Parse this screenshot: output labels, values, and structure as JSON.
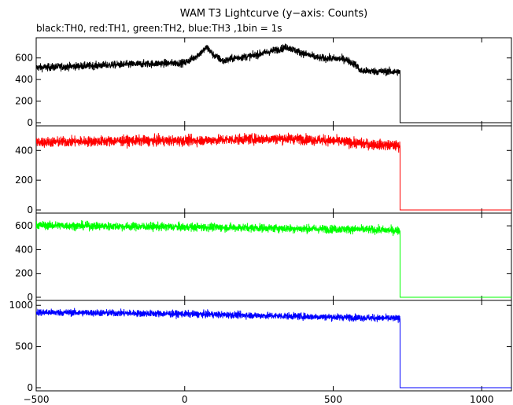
{
  "figure": {
    "title": "WAM T3 Lightcurve (y−axis: Counts)",
    "subtitle": "black:TH0, red:TH1, green:TH2, blue:TH3 ,1bin = 1s"
  },
  "chart_data": [
    {
      "type": "line",
      "channel": "TH0",
      "color": "#000000",
      "xlim": [
        -500,
        1100
      ],
      "ylim": [
        0,
        780
      ],
      "yticks": [
        0,
        200,
        400,
        600
      ],
      "cutoff_x": 725,
      "baseline_after_cutoff": 0,
      "noise": 25,
      "shape": [
        [
          -500,
          510
        ],
        [
          -200,
          540
        ],
        [
          0,
          555
        ],
        [
          30,
          600
        ],
        [
          60,
          660
        ],
        [
          75,
          700
        ],
        [
          95,
          630
        ],
        [
          130,
          570
        ],
        [
          170,
          600
        ],
        [
          230,
          620
        ],
        [
          300,
          670
        ],
        [
          345,
          700
        ],
        [
          390,
          650
        ],
        [
          450,
          600
        ],
        [
          540,
          590
        ],
        [
          580,
          530
        ],
        [
          590,
          480
        ],
        [
          725,
          470
        ]
      ]
    },
    {
      "type": "line",
      "channel": "TH1",
      "color": "#ff0000",
      "xlim": [
        -500,
        1100
      ],
      "ylim": [
        0,
        560
      ],
      "yticks": [
        0,
        200,
        400
      ],
      "cutoff_x": 725,
      "baseline_after_cutoff": 0,
      "noise": 25,
      "shape": [
        [
          -500,
          455
        ],
        [
          -200,
          465
        ],
        [
          0,
          465
        ],
        [
          200,
          475
        ],
        [
          350,
          480
        ],
        [
          500,
          465
        ],
        [
          600,
          445
        ],
        [
          725,
          430
        ]
      ]
    },
    {
      "type": "line",
      "channel": "TH2",
      "color": "#00ff00",
      "xlim": [
        -500,
        1100
      ],
      "ylim": [
        0,
        700
      ],
      "yticks": [
        0,
        200,
        400,
        600
      ],
      "cutoff_x": 725,
      "baseline_after_cutoff": 0,
      "noise": 25,
      "shape": [
        [
          -500,
          605
        ],
        [
          -200,
          595
        ],
        [
          0,
          590
        ],
        [
          200,
          585
        ],
        [
          400,
          575
        ],
        [
          600,
          570
        ],
        [
          725,
          560
        ]
      ]
    },
    {
      "type": "line",
      "channel": "TH3",
      "color": "#0000ff",
      "xlim": [
        -500,
        1100
      ],
      "ylim": [
        0,
        1050
      ],
      "yticks": [
        0,
        500,
        1000
      ],
      "cutoff_x": 725,
      "baseline_after_cutoff": 0,
      "noise": 30,
      "shape": [
        [
          -500,
          915
        ],
        [
          -200,
          905
        ],
        [
          0,
          895
        ],
        [
          200,
          880
        ],
        [
          400,
          865
        ],
        [
          600,
          850
        ],
        [
          725,
          840
        ]
      ]
    }
  ],
  "x_axis": {
    "ticks": [
      -500,
      0,
      500,
      1000
    ],
    "labels": [
      "−500",
      "0",
      "500",
      "1000"
    ]
  }
}
